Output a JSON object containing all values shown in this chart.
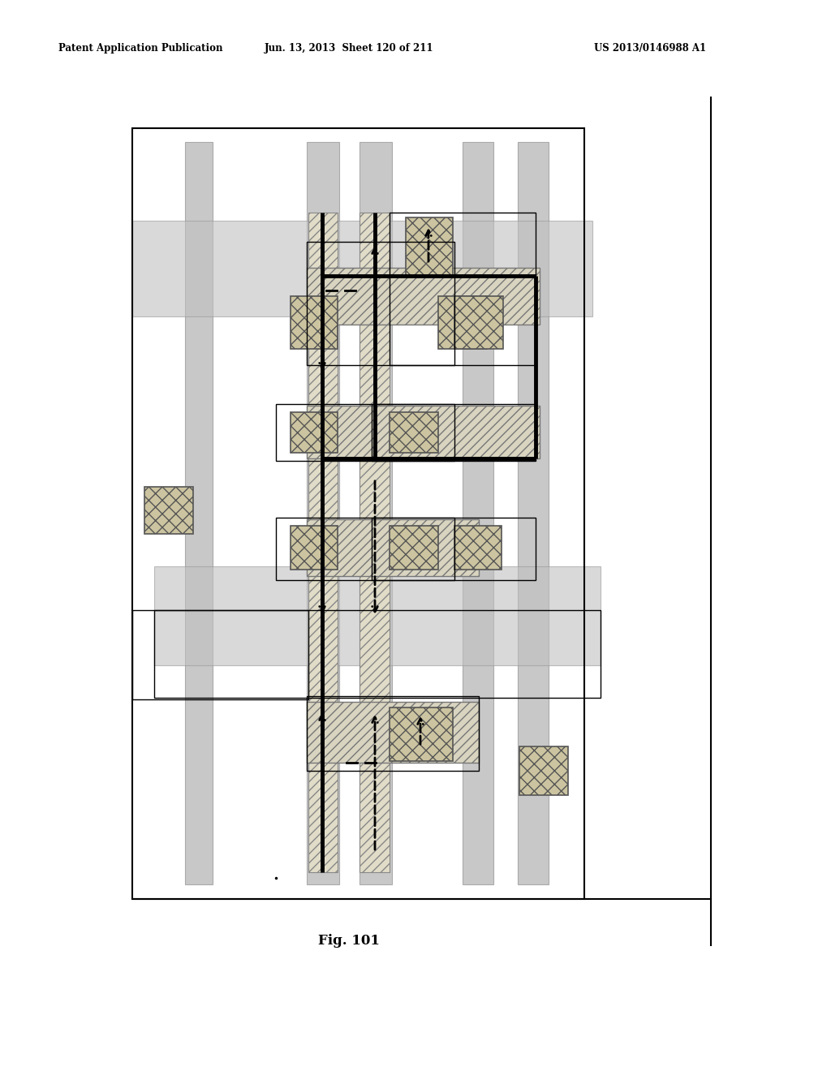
{
  "bg_color": "#ffffff",
  "header_left": "Patent Application Publication",
  "header_mid": "Jun. 13, 2013  Sheet 120 of 211",
  "header_right": "US 2013/0146988 A1",
  "fig_label": "Fig. 101",
  "gray_bar": "#b8b8b8",
  "light_gray_band": "#c0c0c0",
  "hatch_diag_fc": "#e8e4d8",
  "hatch_cross_fc": "#d0c8a8",
  "border_lw": 1.5,
  "gate_lw": 3.5,
  "arrow_lw": 2.0
}
